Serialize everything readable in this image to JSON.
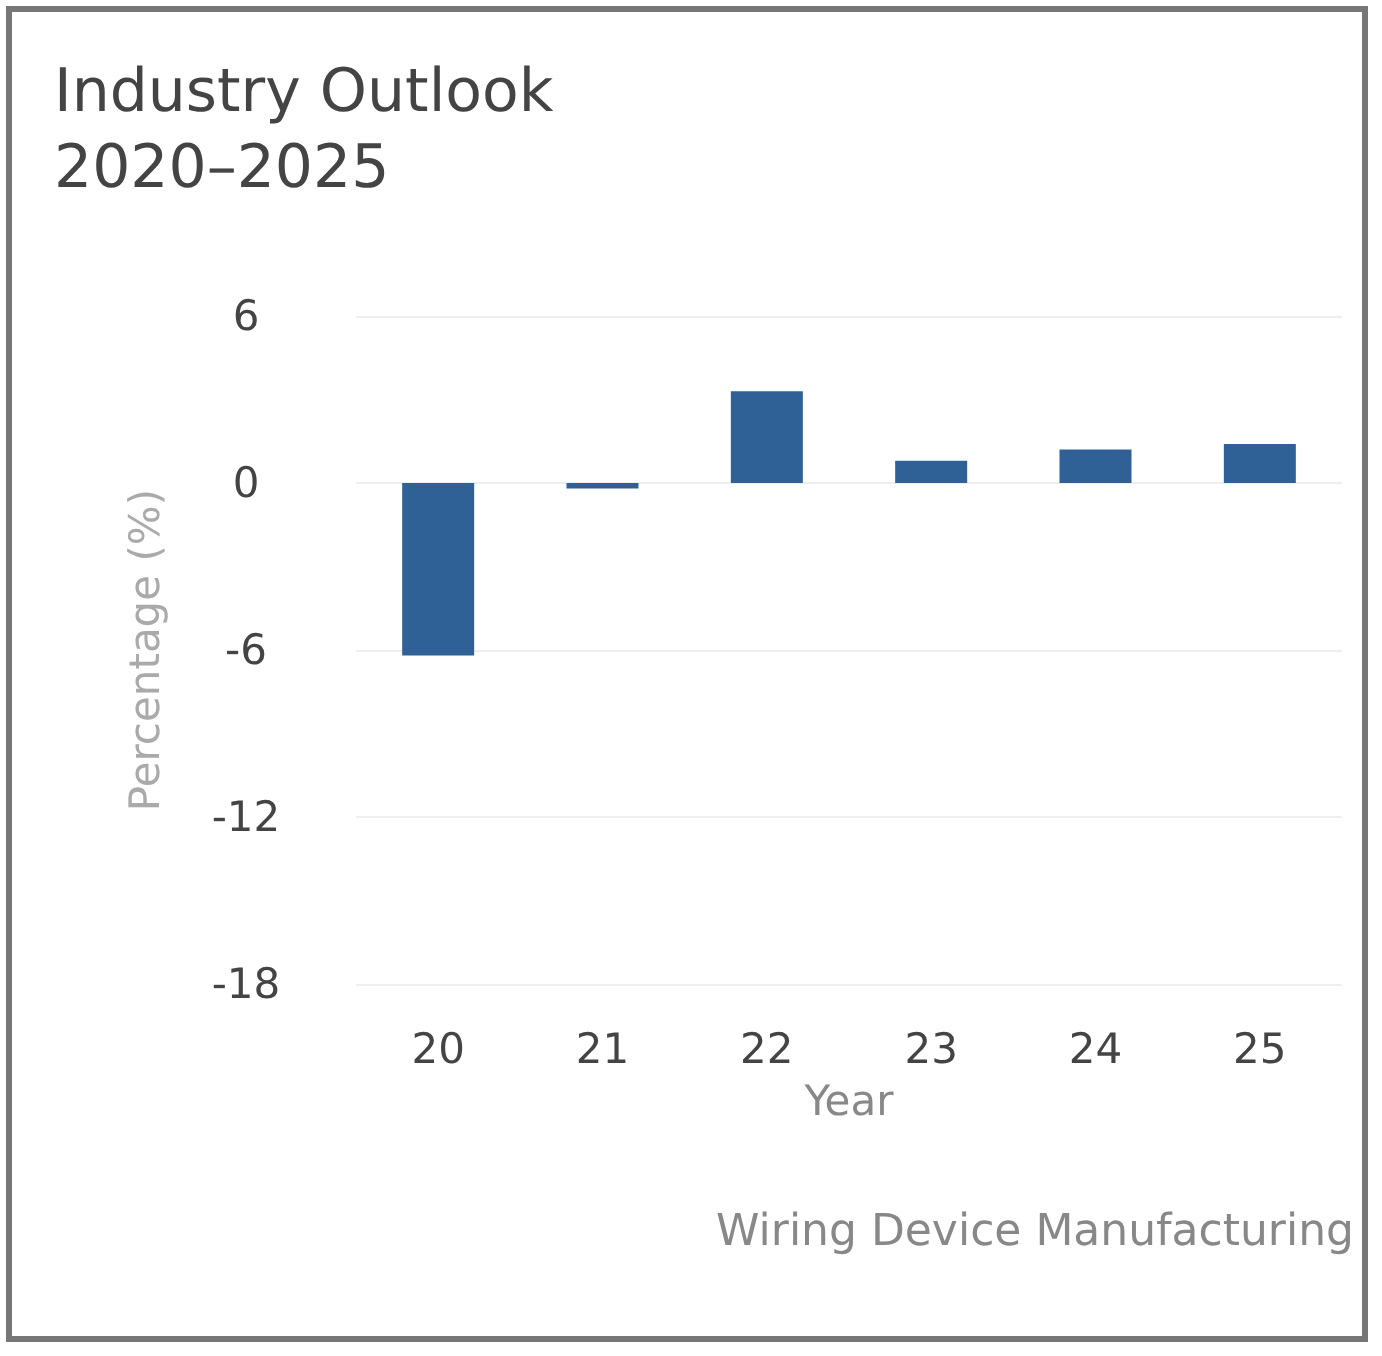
{
  "chart_data": {
    "type": "bar",
    "title": "Industry Outlook\n2020–2025",
    "xlabel": "Year",
    "ylabel": "Percentage (%)",
    "categories": [
      "20",
      "21",
      "22",
      "23",
      "24",
      "25"
    ],
    "values": [
      -6.2,
      -0.2,
      3.3,
      0.8,
      1.2,
      1.4
    ],
    "color": "#2f6096",
    "ylim": [
      -18,
      6
    ],
    "yticks": [
      -18,
      -12,
      -6,
      0,
      6
    ],
    "grid": "y",
    "annotations": [
      "Wiring Device Manufacturing"
    ]
  }
}
